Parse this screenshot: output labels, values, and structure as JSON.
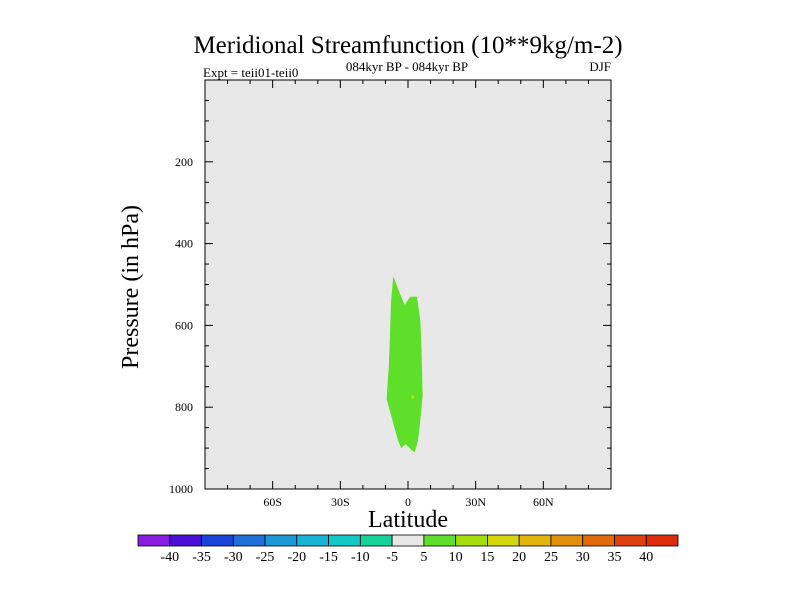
{
  "chart_data": {
    "type": "contour",
    "title": "Meridional Streamfunction (10**9kg/m-2)",
    "subtitle_left": "Expt = teii01-teii0",
    "subtitle_center": "084kyr BP - 084kyr BP",
    "subtitle_right": "DJF",
    "xlabel": "Latitude",
    "ylabel": "Pressure (in hPa)",
    "xlim": [
      -90,
      90
    ],
    "ylim": [
      0,
      1000
    ],
    "y_inverted": true,
    "x_ticks": [
      {
        "value": -60,
        "label": "60S"
      },
      {
        "value": -30,
        "label": "30S"
      },
      {
        "value": 0,
        "label": "0"
      },
      {
        "value": 30,
        "label": "30N"
      },
      {
        "value": 60,
        "label": "60N"
      }
    ],
    "y_ticks": [
      {
        "value": 200,
        "label": "200"
      },
      {
        "value": 400,
        "label": "400"
      },
      {
        "value": 600,
        "label": "600"
      },
      {
        "value": 800,
        "label": "800"
      },
      {
        "value": 1000,
        "label": "1000"
      }
    ],
    "background_color": "#e8e8e8",
    "contour_region": {
      "level_band": "5 to 10",
      "color": "#5ee02a",
      "boundary": [
        [
          -6.5,
          480
        ],
        [
          -3,
          530
        ],
        [
          -1.5,
          550
        ],
        [
          1,
          530
        ],
        [
          4,
          530
        ],
        [
          5.5,
          590
        ],
        [
          6,
          660
        ],
        [
          6.5,
          770
        ],
        [
          5.5,
          830
        ],
        [
          4.5,
          880
        ],
        [
          3,
          910
        ],
        [
          1.5,
          905
        ],
        [
          -1,
          890
        ],
        [
          -3,
          900
        ],
        [
          -4.5,
          880
        ],
        [
          -7,
          830
        ],
        [
          -9.5,
          780
        ],
        [
          -8.5,
          700
        ],
        [
          -8,
          620
        ],
        [
          -7.5,
          540
        ]
      ],
      "spot": {
        "x": 2,
        "y": 775,
        "color": "#c4e000"
      }
    },
    "colorbar": {
      "labels": [
        "-40",
        "-35",
        "-30",
        "-25",
        "-20",
        "-15",
        "-10",
        "-5",
        "5",
        "10",
        "15",
        "20",
        "25",
        "30",
        "35",
        "40"
      ],
      "colors": [
        "#8a1de0",
        "#4a10d8",
        "#1b45d8",
        "#1f6fd8",
        "#1a98d8",
        "#19b3d3",
        "#14c8c8",
        "#17d39a",
        "#e8e8e8",
        "#5ee02a",
        "#a4dc0c",
        "#d2d80a",
        "#e3b40a",
        "#e2900a",
        "#e26a0a",
        "#df4010",
        "#dc2c0c"
      ]
    }
  }
}
